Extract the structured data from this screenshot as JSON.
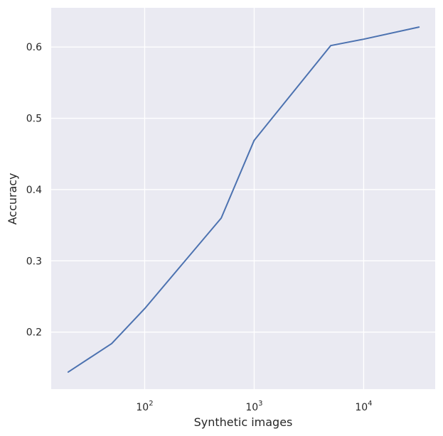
{
  "chart_data": {
    "type": "line",
    "title": "",
    "xlabel": "Synthetic images",
    "ylabel": "Accuracy",
    "xscale": "log",
    "xlim": [
      14,
      45000
    ],
    "ylim": [
      0.12,
      0.655
    ],
    "grid": true,
    "legend": "none",
    "x_ticks": [
      {
        "value": 100,
        "base": "10",
        "exponent": "2"
      },
      {
        "value": 1000,
        "base": "10",
        "exponent": "3"
      },
      {
        "value": 10000,
        "base": "10",
        "exponent": "4"
      }
    ],
    "y_ticks": [
      {
        "value": 0.2,
        "label": "0.2"
      },
      {
        "value": 0.3,
        "label": "0.3"
      },
      {
        "value": 0.4,
        "label": "0.4"
      },
      {
        "value": 0.5,
        "label": "0.5"
      },
      {
        "value": 0.6,
        "label": "0.6"
      }
    ],
    "series": [
      {
        "color": "#4c72b0",
        "x": [
          20,
          50,
          100,
          500,
          1000,
          5000,
          10000,
          32000
        ],
        "y": [
          0.144,
          0.184,
          0.233,
          0.36,
          0.469,
          0.602,
          0.611,
          0.628
        ]
      }
    ]
  },
  "colors": {
    "plot_background": "#eaeaf2",
    "grid": "#ffffff",
    "text": "#262626"
  }
}
